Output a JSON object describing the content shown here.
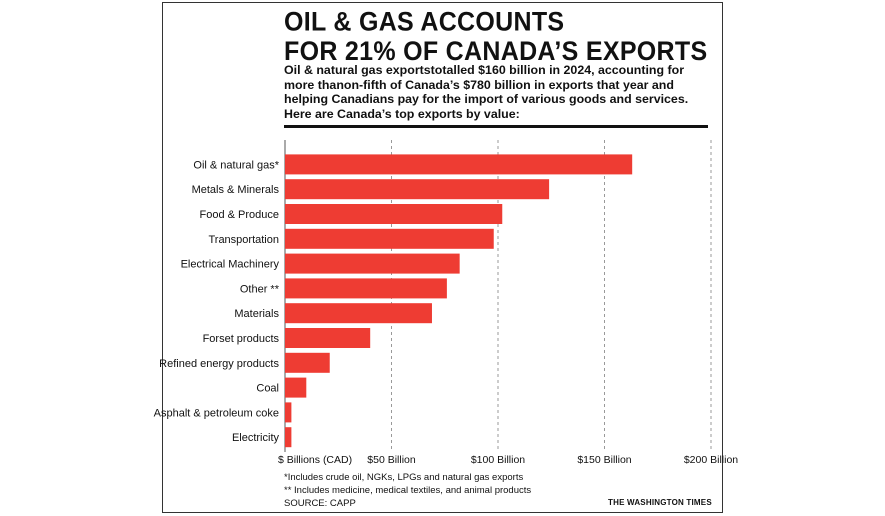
{
  "chart_data": {
    "type": "bar",
    "orientation": "horizontal",
    "title_lines": [
      "OIL &  GAS ACCOUNTS",
      "FOR 21% OF CANADA’S EXPORTS"
    ],
    "subtitle": "Oil & natural gas exportstotalled $160 billion in 2024, accounting for more thanon-fifth of Canada’s $780 billion in exports that year and helping Canadians pay for the import of various goods and services. Here are Canada’s top exports by value:",
    "categories": [
      "Oil & natural gas*",
      "Metals & Minerals",
      "Food & Produce",
      "Transportation",
      "Electrical Machinery",
      "Other **",
      "Materials",
      "Forset  products",
      "Refined energy products",
      "Coal",
      "Asphalt & petroleum coke",
      "Electricity"
    ],
    "values": [
      163,
      124,
      102,
      98,
      82,
      76,
      69,
      40,
      21,
      10,
      3,
      3
    ],
    "xlim": [
      0,
      200
    ],
    "xticks": [
      0,
      50,
      100,
      150,
      200
    ],
    "xtick_labels": [
      "$ Billions (CAD)",
      "$50 Billion",
      "$100 Billion",
      "$150 Billion",
      "$200 Billion"
    ],
    "grid": "vertical dashed",
    "bar_color": "#ee3c33",
    "footnotes": [
      "*Includes crude oil, NGKs, LPGs and natural gas exports",
      "** Includes medicine, medical textiles, and animal products",
      "SOURCE: CAPP"
    ],
    "credit": "THE WASHINGTON TIMES"
  }
}
